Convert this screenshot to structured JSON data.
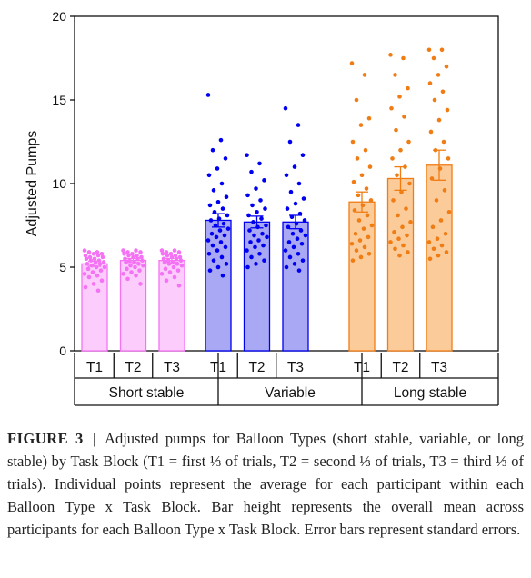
{
  "caption": {
    "label": "FIGURE 3",
    "separator": "|",
    "text": "Adjusted pumps for Balloon Types (short stable, variable, or long stable) by Task Block (T1 = first ⅓ of trials, T2 = second ⅓ of trials, T3 = third ⅓ of trials). Individual points represent the average for each participant within each Balloon Type x Task Block. Bar height represents the overall mean across participants for each Balloon Type x Task Block. Error bars represent standard errors."
  },
  "chart_data": {
    "type": "bar",
    "ylabel": "Adjusted Pumps",
    "ylim": [
      0,
      20
    ],
    "yticks": [
      0,
      5,
      10,
      15,
      20
    ],
    "grid": false,
    "groups": [
      {
        "name": "Short stable",
        "color": "#f472f4",
        "fill": "#fcccfc",
        "categories": [
          "T1",
          "T2",
          "T3"
        ],
        "values": [
          5.2,
          5.4,
          5.4
        ],
        "se": [
          0.15,
          0.12,
          0.12
        ],
        "points": [
          [
            6.0,
            5.9,
            5.9,
            5.8,
            5.8,
            5.7,
            5.7,
            5.6,
            5.6,
            5.5,
            5.5,
            5.4,
            5.4,
            5.3,
            5.3,
            5.2,
            5.2,
            5.1,
            5.0,
            5.0,
            4.9,
            4.8,
            4.7,
            4.6,
            4.5,
            4.4,
            4.2,
            4.0,
            3.8,
            3.6
          ],
          [
            6.0,
            6.0,
            5.9,
            5.9,
            5.8,
            5.8,
            5.7,
            5.7,
            5.6,
            5.6,
            5.5,
            5.5,
            5.4,
            5.4,
            5.3,
            5.3,
            5.2,
            5.1,
            5.1,
            5.0,
            4.9,
            4.8,
            4.7,
            4.6,
            4.5,
            4.3,
            4.0
          ],
          [
            6.0,
            6.0,
            5.9,
            5.9,
            5.8,
            5.8,
            5.7,
            5.7,
            5.6,
            5.6,
            5.5,
            5.5,
            5.4,
            5.4,
            5.3,
            5.3,
            5.2,
            5.2,
            5.1,
            5.0,
            4.9,
            4.8,
            4.7,
            4.6,
            4.4,
            4.2,
            3.9
          ]
        ]
      },
      {
        "name": "Variable",
        "color": "#0000f0",
        "fill": "#a8a8f5",
        "categories": [
          "T1",
          "T2",
          "T3"
        ],
        "values": [
          7.8,
          7.7,
          7.7
        ],
        "se": [
          0.4,
          0.35,
          0.4
        ],
        "points": [
          [
            15.3,
            12.6,
            12.0,
            11.5,
            10.9,
            10.5,
            10.0,
            9.6,
            9.2,
            8.9,
            8.7,
            8.5,
            8.3,
            8.1,
            7.9,
            7.8,
            7.6,
            7.5,
            7.3,
            7.2,
            7.0,
            6.9,
            6.8,
            6.6,
            6.5,
            6.3,
            6.2,
            6.0,
            5.8,
            5.6,
            5.4,
            5.2,
            5.0,
            4.8,
            4.5
          ],
          [
            11.7,
            11.2,
            10.7,
            10.2,
            9.7,
            9.3,
            9.0,
            8.7,
            8.5,
            8.3,
            8.1,
            7.9,
            7.7,
            7.5,
            7.4,
            7.2,
            7.0,
            6.9,
            6.8,
            6.6,
            6.5,
            6.3,
            6.2,
            6.0,
            5.8,
            5.6,
            5.4,
            5.2,
            5.0
          ],
          [
            14.5,
            13.5,
            12.5,
            11.7,
            11.0,
            10.5,
            10.0,
            9.5,
            9.1,
            8.8,
            8.5,
            8.2,
            8.0,
            7.8,
            7.6,
            7.4,
            7.2,
            7.0,
            6.9,
            6.7,
            6.5,
            6.4,
            6.2,
            6.0,
            5.8,
            5.6,
            5.4,
            5.2,
            5.0,
            4.8
          ]
        ]
      },
      {
        "name": "Long stable",
        "color": "#f07c14",
        "fill": "#fbcb9a",
        "categories": [
          "T1",
          "T2",
          "T3"
        ],
        "values": [
          8.9,
          10.3,
          11.1
        ],
        "se": [
          0.6,
          0.7,
          0.9
        ],
        "points": [
          [
            17.2,
            16.5,
            15.0,
            13.9,
            13.5,
            12.5,
            12.0,
            11.5,
            11.0,
            10.5,
            10.1,
            9.7,
            9.3,
            9.0,
            8.7,
            8.4,
            8.1,
            7.8,
            7.5,
            7.3,
            7.0,
            6.8,
            6.6,
            6.4,
            6.2,
            6.0,
            5.8,
            5.6,
            5.4
          ],
          [
            17.7,
            17.5,
            16.5,
            15.7,
            15.2,
            14.5,
            14.0,
            13.2,
            12.5,
            12.0,
            11.5,
            11.0,
            10.5,
            10.0,
            9.5,
            9.0,
            8.5,
            8.1,
            7.7,
            7.4,
            7.1,
            6.9,
            6.7,
            6.5,
            6.3,
            6.1,
            5.9,
            5.7
          ],
          [
            18.0,
            18.0,
            17.5,
            17.0,
            16.5,
            16.0,
            15.5,
            15.0,
            14.4,
            13.8,
            13.1,
            12.5,
            12.0,
            11.5,
            10.9,
            10.3,
            9.6,
            9.0,
            8.3,
            7.8,
            7.4,
            7.0,
            6.7,
            6.5,
            6.3,
            6.1,
            5.9,
            5.7,
            5.5
          ]
        ]
      }
    ]
  }
}
